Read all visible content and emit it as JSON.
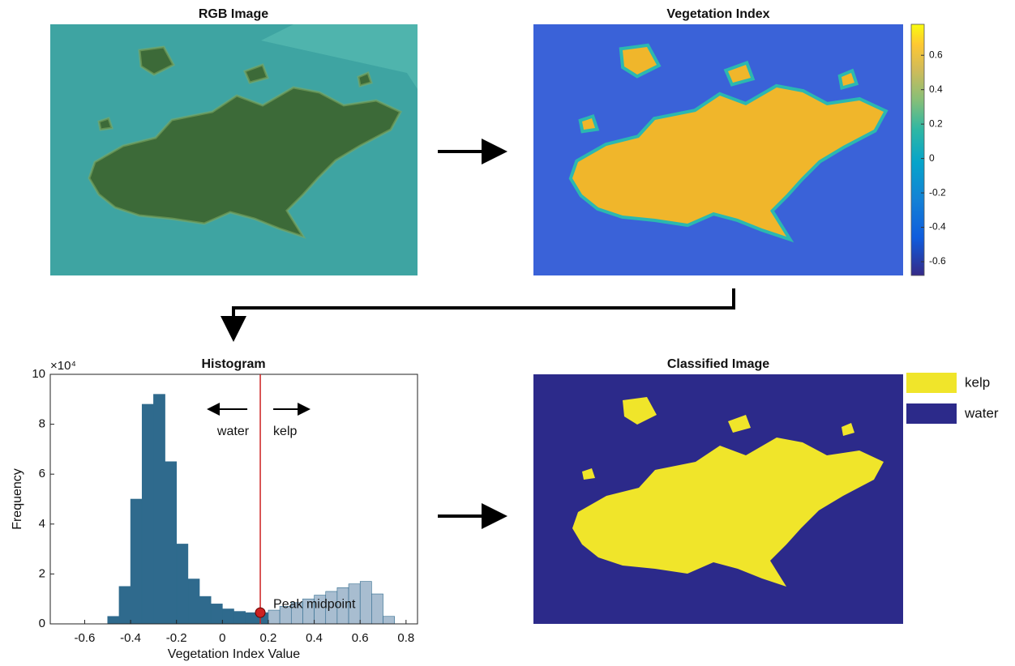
{
  "panels": {
    "rgb": {
      "title": "RGB Image"
    },
    "vegetation": {
      "title": "Vegetation Index",
      "colorbar": {
        "lim": [
          -0.68,
          0.78
        ],
        "ticks": [
          -0.6,
          -0.4,
          -0.2,
          0,
          0.2,
          0.4,
          0.6
        ]
      }
    },
    "classified": {
      "title": "Classified Image",
      "legend": [
        {
          "name": "kelp",
          "color": "#f0e52a"
        },
        {
          "name": "water",
          "color": "#2c2a8a"
        }
      ]
    }
  },
  "chart_data": {
    "type": "histogram",
    "title": "Histogram",
    "x_label": "Vegetation Index Value",
    "y_label": "Frequency",
    "y_scale_label": "×10⁴",
    "bins": [
      -0.5,
      -0.45,
      -0.4,
      -0.35,
      -0.3,
      -0.25,
      -0.2,
      -0.15,
      -0.1,
      -0.05,
      0,
      0.05,
      0.1,
      0.15,
      0.2,
      0.25,
      0.3,
      0.35,
      0.4,
      0.45,
      0.5,
      0.55,
      0.6,
      0.65,
      0.7,
      0.75
    ],
    "values": [
      0.3,
      1.5,
      5.0,
      8.8,
      9.2,
      6.5,
      3.2,
      1.8,
      1.1,
      0.8,
      0.6,
      0.5,
      0.45,
      0.45,
      0.55,
      0.7,
      0.85,
      1.0,
      1.15,
      1.3,
      1.45,
      1.6,
      1.7,
      1.2,
      0.3
    ],
    "color": "#2f6a8d",
    "light_color": "#a8bdd0",
    "threshold": 0.165,
    "threshold_frequency": 0.45,
    "threshold_color": "#cc2222",
    "threshold_label": "Peak midpoint",
    "left_label": "water",
    "right_label": "kelp",
    "xlim": [
      -0.75,
      0.85
    ],
    "xticks": [
      -0.6,
      -0.4,
      -0.2,
      0,
      0.2,
      0.4,
      0.6,
      0.8
    ],
    "ylim": [
      0,
      10
    ],
    "yticks": [
      0,
      2,
      4,
      6,
      8,
      10
    ]
  }
}
